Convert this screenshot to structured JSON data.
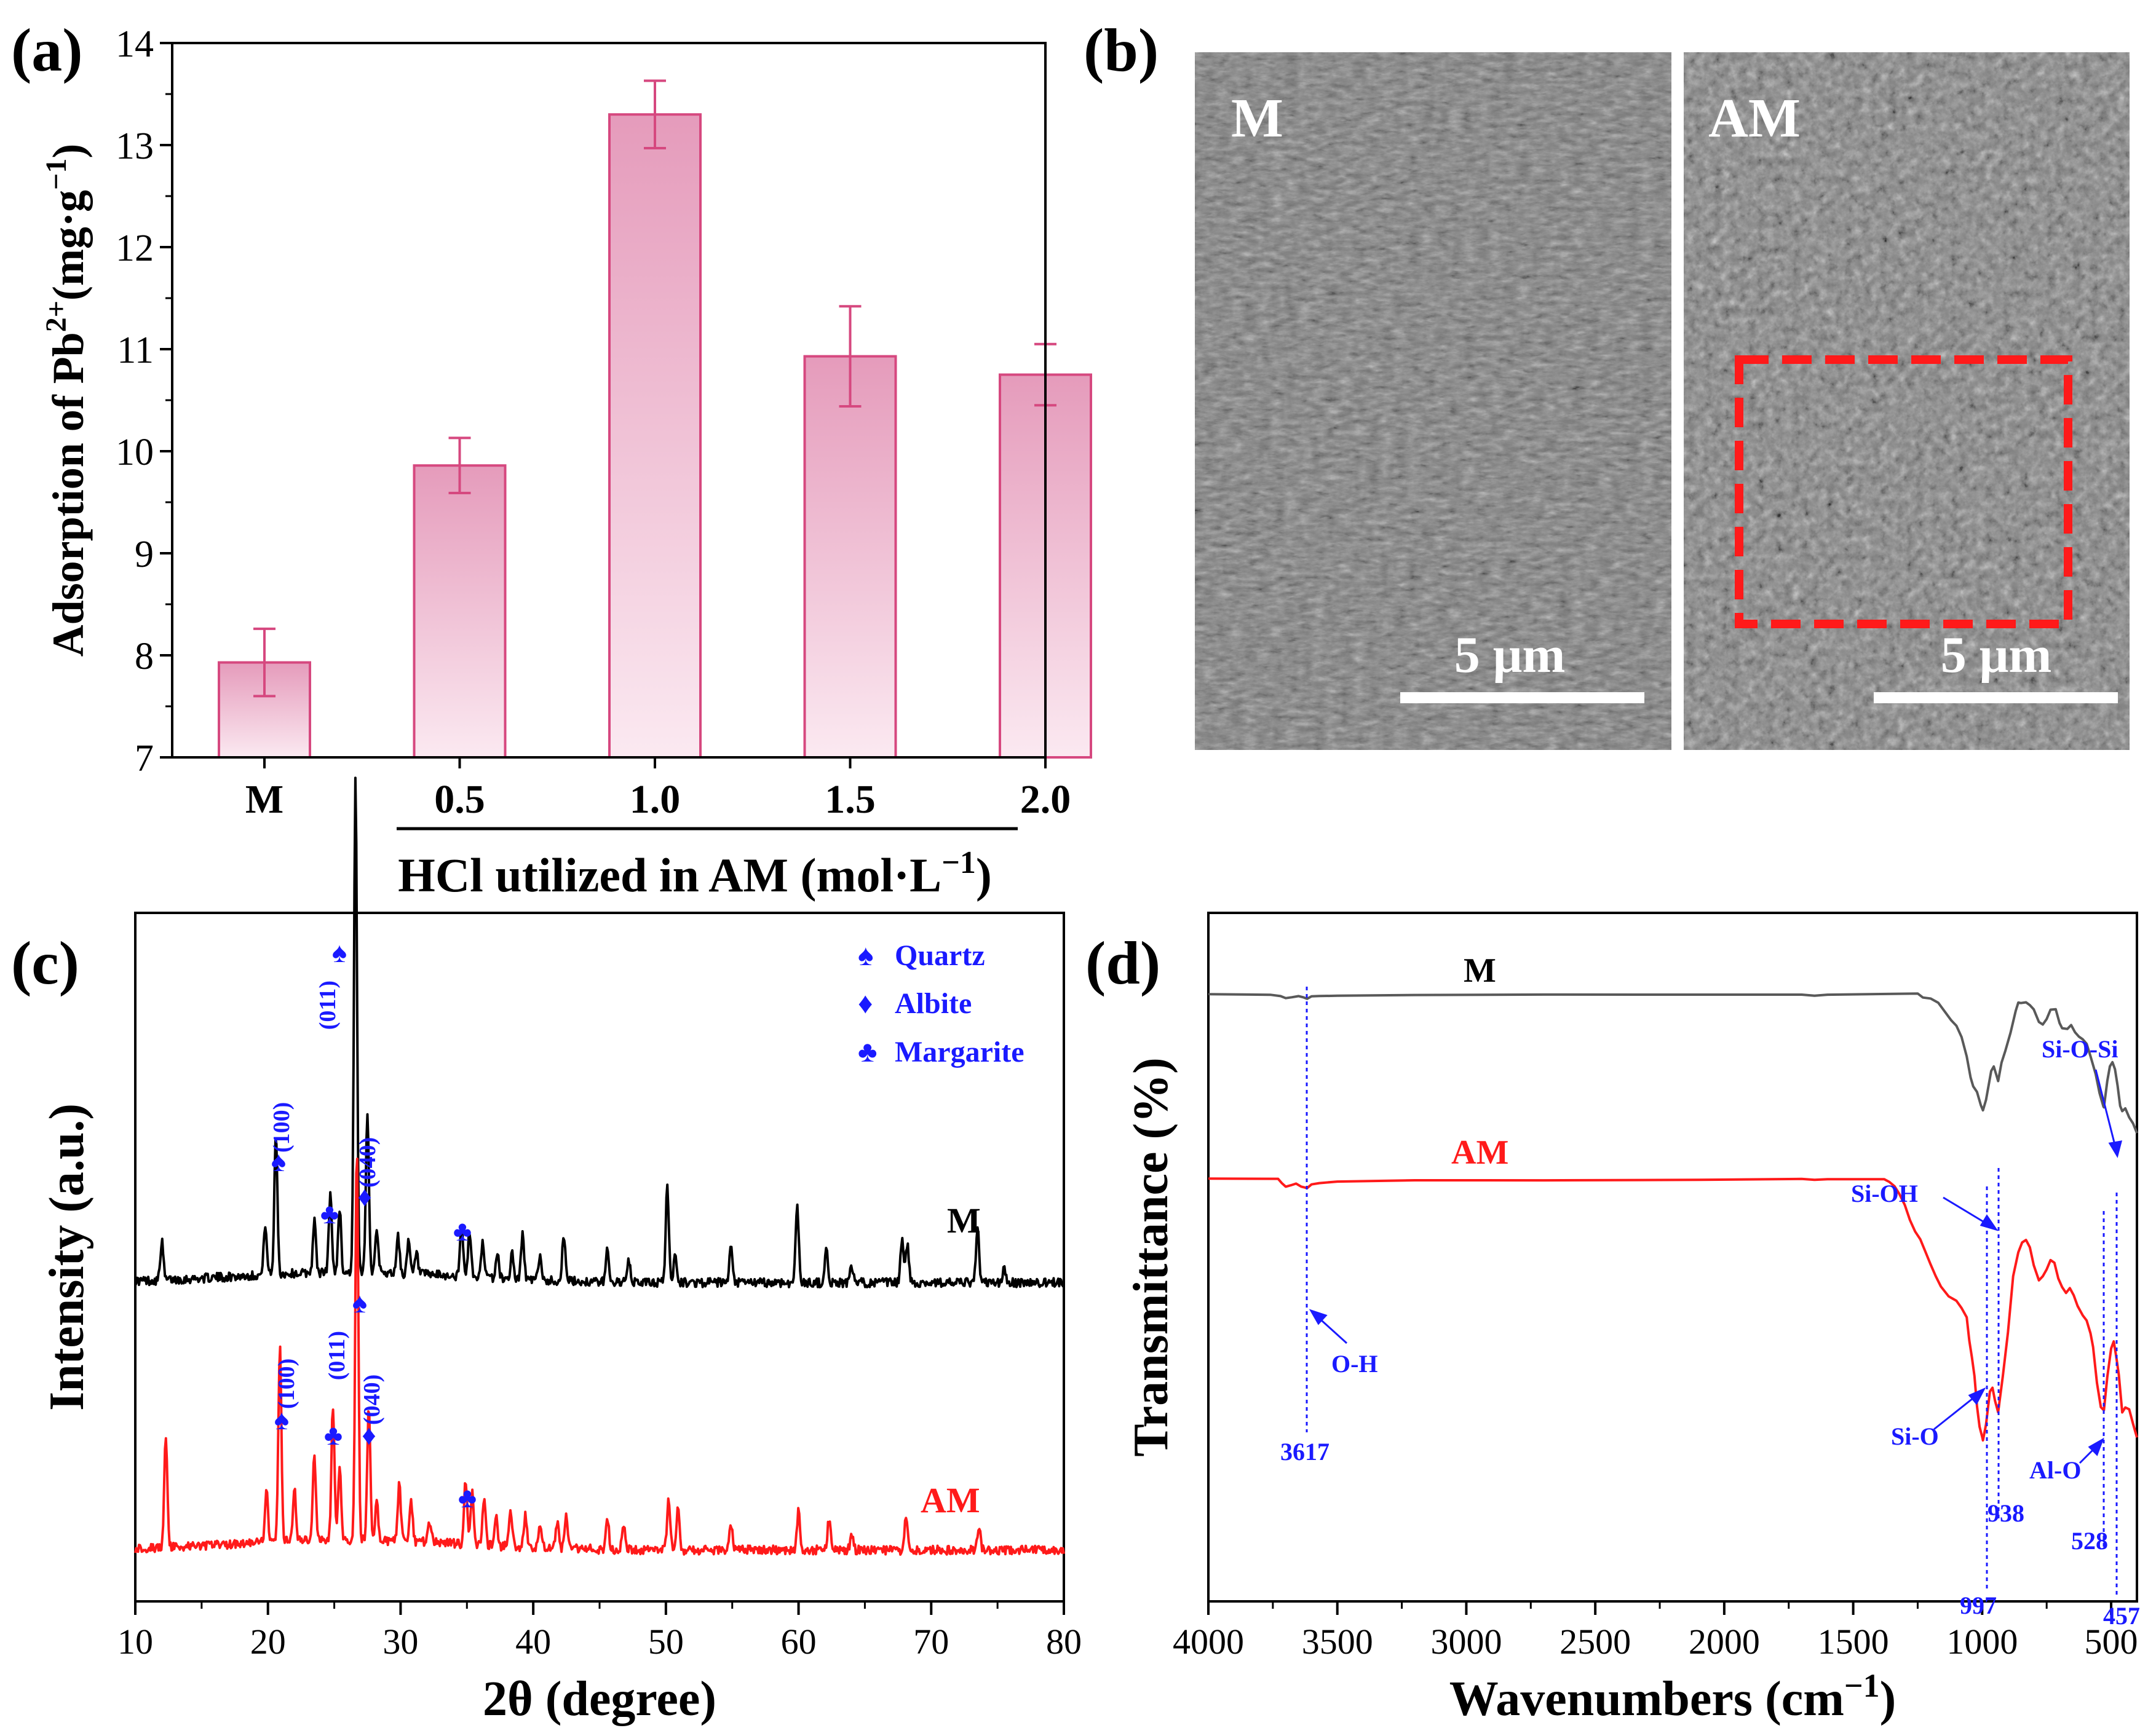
{
  "panels": {
    "a": "(a)",
    "b": "(b)",
    "c": "(c)",
    "d": "(d)"
  },
  "colors": {
    "bar_fill_top": "#e59bbb",
    "bar_fill_bottom": "#fbe9f1",
    "bar_edge": "#d6487f",
    "blue": "#1a1aff",
    "red": "#ff1a1a",
    "grey": "#595959",
    "black": "#000000"
  },
  "chart_data": [
    {
      "type": "bar",
      "panel": "(a)",
      "categories": [
        "M",
        "0.5",
        "1.0",
        "1.5",
        "2.0"
      ],
      "values": [
        7.93,
        9.86,
        13.3,
        10.93,
        10.75
      ],
      "errors": [
        0.33,
        0.27,
        0.33,
        0.49,
        0.3
      ],
      "ylabel_main": "Adsorption of Pb",
      "ylabel_sup": "2+",
      "ylabel_unit": "(mg·g",
      "ylabel_unit_sup": "−1",
      "ylabel_close": ")",
      "xlabel": "HCl utilized in AM (mol·L",
      "xlabel_sup": "−1",
      "xlabel_close": ")",
      "ylim": [
        7,
        14
      ],
      "yticks": [
        "7",
        "8",
        "9",
        "10",
        "11",
        "12",
        "13",
        "14"
      ]
    },
    {
      "type": "image",
      "panel": "(b)",
      "left_label": "M",
      "right_label": "AM",
      "scale_left": "5 μm",
      "scale_right": "5 μm"
    },
    {
      "type": "line",
      "panel": "(c)",
      "xlabel": "2θ (degree)",
      "ylabel": "Intensity (a.u.)",
      "xlim": [
        10,
        80
      ],
      "xticks": [
        "10",
        "20",
        "30",
        "40",
        "50",
        "60",
        "70",
        "80"
      ],
      "series": [
        {
          "name": "M",
          "color": "#000000",
          "peaks": [
            [
              12.0,
              0.15
            ],
            [
              19.8,
              0.2
            ],
            [
              20.6,
              0.55
            ],
            [
              23.5,
              0.2
            ],
            [
              24.7,
              0.3
            ],
            [
              25.4,
              0.25
            ],
            [
              26.6,
              1.92
            ],
            [
              27.5,
              0.63
            ],
            [
              28.2,
              0.18
            ],
            [
              29.8,
              0.15
            ],
            [
              30.6,
              0.12
            ],
            [
              31.2,
              0.08
            ],
            [
              34.6,
              0.2
            ],
            [
              35.2,
              0.18
            ],
            [
              36.2,
              0.14
            ],
            [
              37.3,
              0.1
            ],
            [
              38.4,
              0.1
            ],
            [
              39.2,
              0.18
            ],
            [
              40.5,
              0.1
            ],
            [
              42.3,
              0.18
            ],
            [
              45.6,
              0.13
            ],
            [
              47.2,
              0.08
            ],
            [
              50.1,
              0.38
            ],
            [
              50.7,
              0.12
            ],
            [
              54.9,
              0.13
            ],
            [
              59.9,
              0.3
            ],
            [
              62.1,
              0.12
            ],
            [
              64.0,
              0.06
            ],
            [
              67.8,
              0.17
            ],
            [
              68.2,
              0.15
            ],
            [
              73.5,
              0.22
            ],
            [
              75.5,
              0.05
            ]
          ]
        },
        {
          "name": "AM",
          "color": "#ff1a1a",
          "peaks": [
            [
              12.3,
              0.42
            ],
            [
              19.9,
              0.2
            ],
            [
              20.9,
              0.75
            ],
            [
              22.0,
              0.2
            ],
            [
              23.5,
              0.33
            ],
            [
              24.9,
              0.52
            ],
            [
              25.4,
              0.28
            ],
            [
              26.7,
              1.52
            ],
            [
              27.6,
              0.53
            ],
            [
              28.2,
              0.15
            ],
            [
              29.9,
              0.22
            ],
            [
              30.8,
              0.15
            ],
            [
              32.2,
              0.08
            ],
            [
              34.9,
              0.25
            ],
            [
              35.4,
              0.2
            ],
            [
              36.3,
              0.18
            ],
            [
              37.2,
              0.12
            ],
            [
              38.3,
              0.14
            ],
            [
              39.4,
              0.12
            ],
            [
              40.5,
              0.1
            ],
            [
              41.8,
              0.1
            ],
            [
              42.5,
              0.12
            ],
            [
              45.6,
              0.12
            ],
            [
              46.8,
              0.1
            ],
            [
              50.2,
              0.2
            ],
            [
              50.9,
              0.16
            ],
            [
              54.9,
              0.1
            ],
            [
              60.0,
              0.15
            ],
            [
              62.3,
              0.12
            ],
            [
              64.0,
              0.06
            ],
            [
              68.1,
              0.12
            ],
            [
              73.6,
              0.1
            ]
          ]
        }
      ],
      "legend": [
        "Quartz",
        "Albite",
        "Margarite"
      ],
      "legend_symbols": [
        "♠",
        "♦",
        "♣"
      ],
      "annotations": {
        "m_011": "(011)",
        "m_100": "(100)",
        "m_040": "(040)",
        "am_011": "(011)",
        "am_100": "(100)",
        "am_040": "(040)",
        "spade": "♠",
        "diamond": "♦",
        "club": "♣"
      },
      "series_labels": [
        "M",
        "AM"
      ]
    },
    {
      "type": "line",
      "panel": "(d)",
      "xlabel": "Wavenumbers (cm",
      "xlabel_sup": "−1",
      "xlabel_close": ")",
      "ylabel": "Transmittance (%)",
      "xlim": [
        4000,
        400
      ],
      "xticks": [
        "4000",
        "3500",
        "3000",
        "2500",
        "2000",
        "1500",
        "1000",
        "500"
      ],
      "series": [
        {
          "name": "M",
          "color": "#595959",
          "points": [
            [
              4000,
              0
            ],
            [
              3760,
              0
            ],
            [
              3720,
              2
            ],
            [
              3700,
              6
            ],
            [
              3675,
              4
            ],
            [
              3650,
              3
            ],
            [
              3630,
              5
            ],
            [
              3617,
              7
            ],
            [
              3600,
              3
            ],
            [
              3570,
              2
            ],
            [
              3500,
              1.2
            ],
            [
              3200,
              0.5
            ],
            [
              2700,
              0.4
            ],
            [
              2100,
              0.5
            ],
            [
              1700,
              0.3
            ],
            [
              1650,
              1.6
            ],
            [
              1600,
              0.3
            ],
            [
              1250,
              0
            ],
            [
              1230,
              3
            ],
            [
              1200,
              7
            ],
            [
              1170,
              15
            ],
            [
              1150,
              25
            ],
            [
              1120,
              40
            ],
            [
              1100,
              50
            ],
            [
              1080,
              70
            ],
            [
              1060,
              100
            ],
            [
              1045,
              135
            ],
            [
              1035,
              150
            ],
            [
              1020,
              160
            ],
            [
              1005,
              180
            ],
            [
              997,
              188
            ],
            [
              985,
              170
            ],
            [
              965,
              125
            ],
            [
              955,
              118
            ],
            [
              945,
              130
            ],
            [
              938,
              140
            ],
            [
              925,
              112
            ],
            [
              910,
              90
            ],
            [
              890,
              60
            ],
            [
              870,
              25
            ],
            [
              860,
              14
            ],
            [
              850,
              12
            ],
            [
              830,
              12
            ],
            [
              815,
              16
            ],
            [
              800,
              25
            ],
            [
              780,
              45
            ],
            [
              765,
              50
            ],
            [
              750,
              40
            ],
            [
              735,
              25
            ],
            [
              715,
              25
            ],
            [
              700,
              45
            ],
            [
              690,
              55
            ],
            [
              670,
              57
            ],
            [
              655,
              50
            ],
            [
              640,
              60
            ],
            [
              625,
              67
            ],
            [
              610,
              73
            ],
            [
              595,
              80
            ],
            [
              580,
              100
            ],
            [
              560,
              130
            ],
            [
              545,
              160
            ],
            [
              530,
              182
            ],
            [
              528,
              183
            ],
            [
              515,
              140
            ],
            [
              505,
              115
            ],
            [
              495,
              110
            ],
            [
              485,
              122
            ],
            [
              475,
              148
            ],
            [
              465,
              180
            ],
            [
              457,
              190
            ],
            [
              445,
              185
            ],
            [
              430,
              198
            ],
            [
              415,
              210
            ],
            [
              400,
              225
            ]
          ]
        },
        {
          "name": "AM",
          "color": "#ff1a1a",
          "points": [
            [
              4000,
              0
            ],
            [
              3730,
              0
            ],
            [
              3715,
              6
            ],
            [
              3700,
              12
            ],
            [
              3680,
              10
            ],
            [
              3660,
              8
            ],
            [
              3640,
              12
            ],
            [
              3617,
              14
            ],
            [
              3600,
              8
            ],
            [
              3570,
              6
            ],
            [
              3500,
              3.5
            ],
            [
              3200,
              2
            ],
            [
              2700,
              1.6
            ],
            [
              2100,
              1
            ],
            [
              1700,
              0.3
            ],
            [
              1650,
              1.5
            ],
            [
              1600,
              0.4
            ],
            [
              1380,
              0
            ],
            [
              1360,
              4
            ],
            [
              1340,
              12
            ],
            [
              1320,
              25
            ],
            [
              1300,
              42
            ],
            [
              1280,
              65
            ],
            [
              1260,
              85
            ],
            [
              1240,
              100
            ],
            [
              1220,
              120
            ],
            [
              1200,
              140
            ],
            [
              1180,
              160
            ],
            [
              1160,
              175
            ],
            [
              1130,
              190
            ],
            [
              1100,
              200
            ],
            [
              1080,
              210
            ],
            [
              1060,
              225
            ],
            [
              1050,
              262
            ],
            [
              1040,
              290
            ],
            [
              1030,
              320
            ],
            [
              1020,
              370
            ],
            [
              1010,
              405
            ],
            [
              1000,
              420
            ],
            [
              997,
              425
            ],
            [
              985,
              400
            ],
            [
              970,
              345
            ],
            [
              960,
              340
            ],
            [
              950,
              360
            ],
            [
              938,
              378
            ],
            [
              920,
              320
            ],
            [
              900,
              250
            ],
            [
              880,
              160
            ],
            [
              860,
              120
            ],
            [
              845,
              105
            ],
            [
              830,
              98
            ],
            [
              815,
              112
            ],
            [
              800,
              140
            ],
            [
              780,
              165
            ],
            [
              765,
              160
            ],
            [
              750,
              145
            ],
            [
              735,
              130
            ],
            [
              720,
              138
            ],
            [
              705,
              160
            ],
            [
              690,
              175
            ],
            [
              675,
              185
            ],
            [
              660,
              178
            ],
            [
              645,
              190
            ],
            [
              630,
              205
            ],
            [
              610,
              220
            ],
            [
              595,
              230
            ],
            [
              580,
              250
            ],
            [
              570,
              275
            ],
            [
              555,
              330
            ],
            [
              540,
              370
            ],
            [
              528,
              378
            ],
            [
              515,
              320
            ],
            [
              500,
              275
            ],
            [
              490,
              265
            ],
            [
              480,
              290
            ],
            [
              470,
              320
            ],
            [
              457,
              380
            ],
            [
              445,
              370
            ],
            [
              430,
              375
            ],
            [
              415,
              400
            ],
            [
              400,
              420
            ]
          ]
        }
      ],
      "series_labels": [
        "M",
        "AM"
      ],
      "annotations": {
        "oh": "O-H",
        "wn_3617": "3617",
        "sioh": "Si-OH",
        "sio": "Si-O",
        "siosi": "Si-O-Si",
        "alo": "Al-O",
        "wn_938": "938",
        "wn_997": "997",
        "wn_528": "528",
        "wn_457": "457"
      }
    }
  ]
}
